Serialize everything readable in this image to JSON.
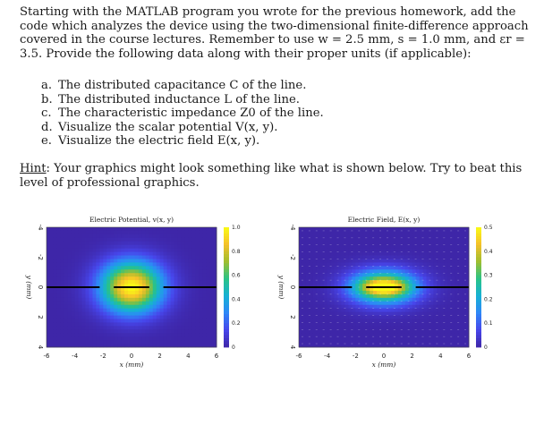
{
  "intro_text": "Starting with the MATLAB program you wrote for the previous homework, add the code which analyzes the device using the two-dimensional finite-difference approach covered in the course lectures. Remember to use w = 2.5 mm, s = 1.0 mm, and εr = 3.5. Provide the following data along with their proper units (if applicable):",
  "items": [
    {
      "letter": "a.",
      "text": "The distributed capacitance C of the line."
    },
    {
      "letter": "b.",
      "text": "The distributed inductance L of the line."
    },
    {
      "letter": "c.",
      "text": "The characteristic impedance Z0 of the line."
    },
    {
      "letter": "d.",
      "text": "Visualize the scalar potential V(x, y)."
    },
    {
      "letter": "e.",
      "text": "Visualize the electric field E(x, y)."
    }
  ],
  "hint": {
    "label": "Hint",
    "text": ": Your graphics might look something like what is shown below. Try to beat this level of professional graphics."
  },
  "chart_data": [
    {
      "type": "heatmap",
      "title": "Electric Potential, v(x, y)",
      "xlabel": "x (mm)",
      "ylabel": "y (mm)",
      "xlim": [
        -6,
        6
      ],
      "ylim": [
        -4,
        4
      ],
      "x_ticks": [
        "-6",
        "-4",
        "-2",
        "0",
        "2",
        "4",
        "6"
      ],
      "y_ticks": [
        "-4",
        "-2",
        "0",
        "2",
        "4"
      ],
      "colorbar_ticks": [
        "0",
        "0.2",
        "0.4",
        "0.6",
        "0.8",
        "1.0"
      ],
      "clim": [
        0,
        1
      ],
      "conductors": [
        {
          "x_start": -6,
          "x_end": -2.25,
          "y": 0
        },
        {
          "x_start": -1.25,
          "x_end": 1.25,
          "y": 0
        },
        {
          "x_start": 2.25,
          "x_end": 6,
          "y": 0
        }
      ]
    },
    {
      "type": "heatmap",
      "title": "Electric Field, E(x, y)",
      "xlabel": "x (mm)",
      "ylabel": "y (mm)",
      "xlim": [
        -6,
        6
      ],
      "ylim": [
        -4,
        4
      ],
      "x_ticks": [
        "-6",
        "-4",
        "-2",
        "0",
        "2",
        "4",
        "6"
      ],
      "y_ticks": [
        "-4",
        "-2",
        "0",
        "2",
        "4"
      ],
      "colorbar_ticks": [
        "0",
        "0.1",
        "0.2",
        "0.3",
        "0.4",
        "0.5"
      ],
      "clim": [
        0,
        0.5
      ],
      "conductors": [
        {
          "x_start": -6,
          "x_end": -2.25,
          "y": 0
        },
        {
          "x_start": -1.25,
          "x_end": 1.25,
          "y": 0
        },
        {
          "x_start": 2.25,
          "x_end": 6,
          "y": 0
        }
      ]
    }
  ],
  "colormap": [
    "#3e26a8",
    "#4746eb",
    "#2e87f7",
    "#16b1d4",
    "#2ac385",
    "#a0be2f",
    "#f5c02a",
    "#f9fb15"
  ]
}
